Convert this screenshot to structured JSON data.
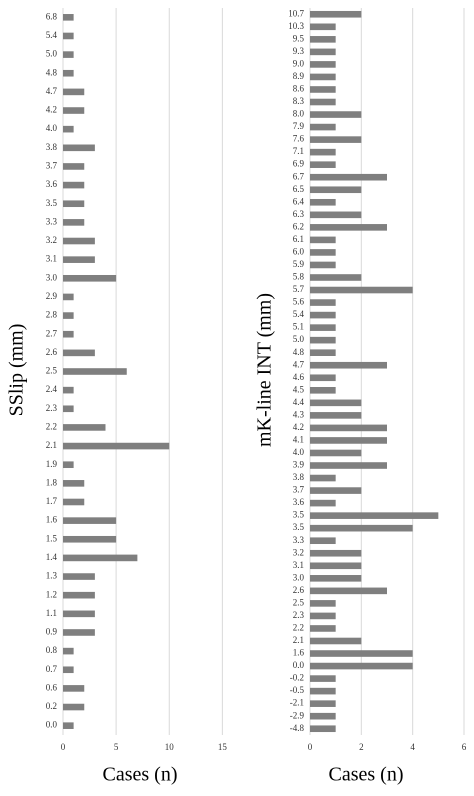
{
  "chart_data": [
    {
      "type": "barh",
      "ylabel": "SSlip (mm)",
      "xlabel": "Cases (n)",
      "categories": [
        "6.8",
        "5.4",
        "5.0",
        "4.8",
        "4.7",
        "4.2",
        "4.0",
        "3.8",
        "3.7",
        "3.6",
        "3.5",
        "3.3",
        "3.2",
        "3.1",
        "3.0",
        "2.9",
        "2.8",
        "2.7",
        "2.6",
        "2.5",
        "2.4",
        "2.3",
        "2.2",
        "2.1",
        "1.9",
        "1.8",
        "1.7",
        "1.6",
        "1.5",
        "1.4",
        "1.3",
        "1.2",
        "1.1",
        "0.9",
        "0.8",
        "0.7",
        "0.6",
        "0.2",
        "0.0"
      ],
      "values": [
        1,
        1,
        1,
        1,
        2,
        2,
        1,
        3,
        2,
        2,
        2,
        2,
        3,
        3,
        5,
        1,
        1,
        1,
        3,
        6,
        1,
        1,
        4,
        10,
        1,
        2,
        2,
        5,
        5,
        7,
        3,
        3,
        3,
        3,
        1,
        1,
        2,
        2,
        1
      ],
      "color": "#7f7f7f",
      "xlim": [
        0,
        16
      ],
      "xticks": [
        0,
        5,
        10,
        15
      ],
      "grid": true
    },
    {
      "type": "barh",
      "ylabel": "mK-line INT (mm)",
      "xlabel": "Cases (n)",
      "categories": [
        "10.7",
        "10.3",
        "9.5",
        "9.3",
        "9.0",
        "8.9",
        "8.6",
        "8.3",
        "8.0",
        "7.9",
        "7.6",
        "7.1",
        "6.9",
        "6.7",
        "6.5",
        "6.4",
        "6.3",
        "6.2",
        "6.1",
        "6.0",
        "5.9",
        "5.8",
        "5.7",
        "5.6",
        "5.4",
        "5.1",
        "5.0",
        "4.8",
        "4.7",
        "4.6",
        "4.5",
        "4.4",
        "4.3",
        "4.2",
        "4.1",
        "4.0",
        "3.9",
        "3.8",
        "3.7",
        "3.6",
        "3.5",
        "3.5",
        "3.3",
        "3.2",
        "3.1",
        "3.0",
        "2.6",
        "2.5",
        "2.3",
        "2.2",
        "2.1",
        "1.6",
        "0.0",
        "-0.2",
        "-0.5",
        "-2.1",
        "-2.9",
        "-4.8"
      ],
      "values": [
        2,
        1,
        1,
        1,
        1,
        1,
        1,
        1,
        2,
        1,
        2,
        1,
        1,
        3,
        2,
        1,
        2,
        3,
        1,
        1,
        1,
        2,
        4,
        1,
        1,
        1,
        1,
        1,
        3,
        1,
        1,
        2,
        2,
        3,
        3,
        2,
        3,
        1,
        2,
        1,
        5,
        4,
        1,
        2,
        2,
        2,
        3,
        1,
        1,
        1,
        2,
        4,
        4,
        1,
        1,
        1,
        1,
        1
      ],
      "color": "#7f7f7f",
      "xlim": [
        0,
        6
      ],
      "xticks": [
        0,
        2,
        4,
        6
      ],
      "grid": true
    }
  ]
}
